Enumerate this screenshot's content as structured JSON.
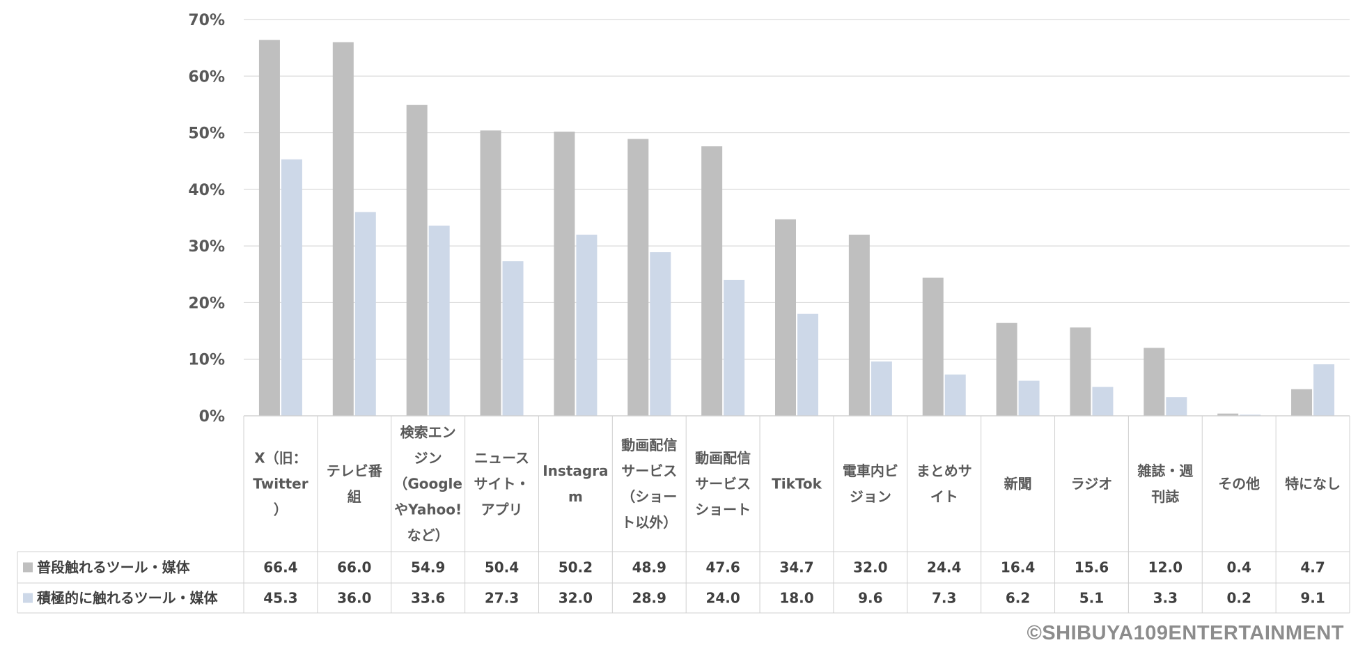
{
  "chart_data": {
    "type": "bar",
    "ylim": [
      0,
      70
    ],
    "yticks": [
      "0%",
      "10%",
      "20%",
      "30%",
      "40%",
      "50%",
      "60%",
      "70%"
    ],
    "categories": [
      [
        "X（旧：",
        "Twitter",
        "）"
      ],
      [
        "テレビ番",
        "組"
      ],
      [
        "検索エン",
        "ジン",
        "（Google",
        "やYahoo!",
        "など）"
      ],
      [
        "ニュース",
        "サイト・",
        "アプリ"
      ],
      [
        "Instagra",
        "m"
      ],
      [
        "動画配信",
        "サービス",
        "（ショー",
        "ト以外）"
      ],
      [
        "動画配信",
        "サービス",
        "ショート"
      ],
      [
        "TikTok"
      ],
      [
        "電車内ビ",
        "ジョン"
      ],
      [
        "まとめサ",
        "イト"
      ],
      [
        "新聞"
      ],
      [
        "ラジオ"
      ],
      [
        "雑誌・週",
        "刊誌"
      ],
      [
        "その他"
      ],
      [
        "特になし"
      ]
    ],
    "series": [
      {
        "name": "普段触れるツール・媒体",
        "color": "#bfbfbf",
        "values": [
          66.4,
          66.0,
          54.9,
          50.4,
          50.2,
          48.9,
          47.6,
          34.7,
          32.0,
          24.4,
          16.4,
          15.6,
          12.0,
          0.4,
          4.7
        ],
        "labels": [
          "66.4",
          "66.0",
          "54.9",
          "50.4",
          "50.2",
          "48.9",
          "47.6",
          "34.7",
          "32.0",
          "24.4",
          "16.4",
          "15.6",
          "12.0",
          "0.4",
          "4.7"
        ]
      },
      {
        "name": "積極的に触れるツール・媒体",
        "color": "#cdd8e8",
        "values": [
          45.3,
          36.0,
          33.6,
          27.3,
          32.0,
          28.9,
          24.0,
          18.0,
          9.6,
          7.3,
          6.2,
          5.1,
          3.3,
          0.2,
          9.1
        ],
        "labels": [
          "45.3",
          "36.0",
          "33.6",
          "27.3",
          "32.0",
          "28.9",
          "24.0",
          "18.0",
          "9.6",
          "7.3",
          "6.2",
          "5.1",
          "3.3",
          "0.2",
          "9.1"
        ]
      }
    ],
    "grid": true,
    "legend": "table-left"
  },
  "copyright": "©SHIBUYA109ENTERTAINMENT"
}
